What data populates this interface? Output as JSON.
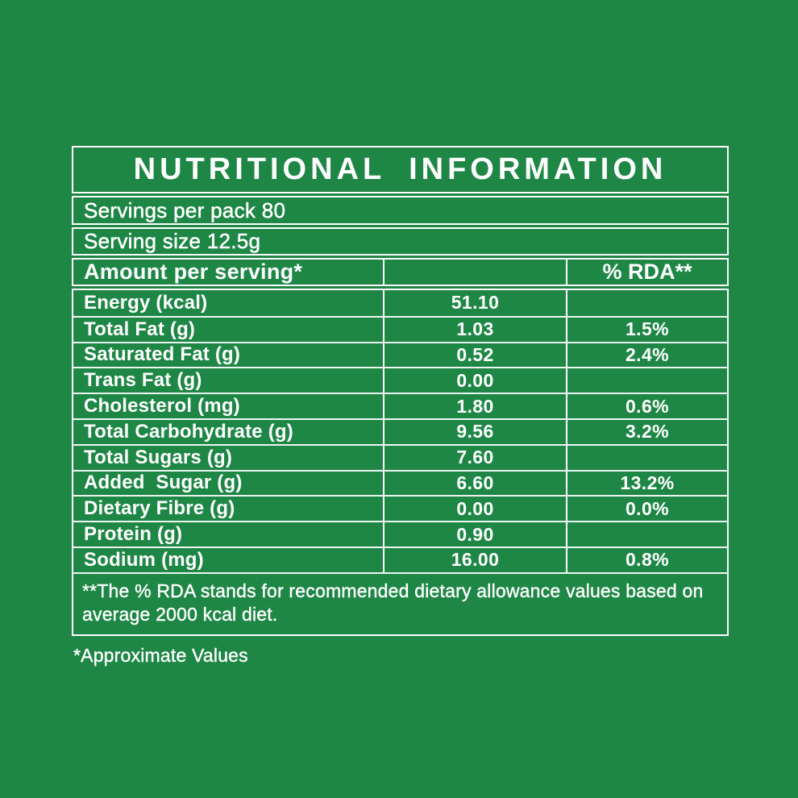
{
  "colors": {
    "background": "#1e8745",
    "border": "#ffffff",
    "text": "#ffffff"
  },
  "title": "NUTRITIONAL INFORMATION",
  "servings_per_pack": "Servings per pack 80",
  "serving_size": "Serving size 12.5g",
  "table": {
    "header": {
      "amount_label": "Amount per serving*",
      "middle_label": "",
      "rda_label": "% RDA**"
    },
    "rows": [
      {
        "label": "Energy (kcal)",
        "amount": "51.10",
        "rda": ""
      },
      {
        "label": "Total Fat (g)",
        "amount": "1.03",
        "rda": "1.5%"
      },
      {
        "label": "Saturated Fat (g)",
        "amount": "0.52",
        "rda": "2.4%"
      },
      {
        "label": "Trans Fat (g)",
        "amount": "0.00",
        "rda": ""
      },
      {
        "label": "Cholesterol (mg)",
        "amount": "1.80",
        "rda": "0.6%"
      },
      {
        "label": "Total Carbohydrate (g)",
        "amount": "9.56",
        "rda": "3.2%"
      },
      {
        "label": "Total Sugars (g)",
        "amount": "7.60",
        "rda": ""
      },
      {
        "label": "Added  Sugar (g)",
        "amount": "6.60",
        "rda": "13.2%"
      },
      {
        "label": "Dietary Fibre (g)",
        "amount": "0.00",
        "rda": "0.0%"
      },
      {
        "label": "Protein (g)",
        "amount": "0.90",
        "rda": ""
      },
      {
        "label": "Sodium (mg)",
        "amount": "16.00",
        "rda": "0.8%"
      }
    ],
    "footnote": "**The % RDA stands for recommended dietary allowance values based on average 2000 kcal diet."
  },
  "approximate_note": "*Approximate Values"
}
